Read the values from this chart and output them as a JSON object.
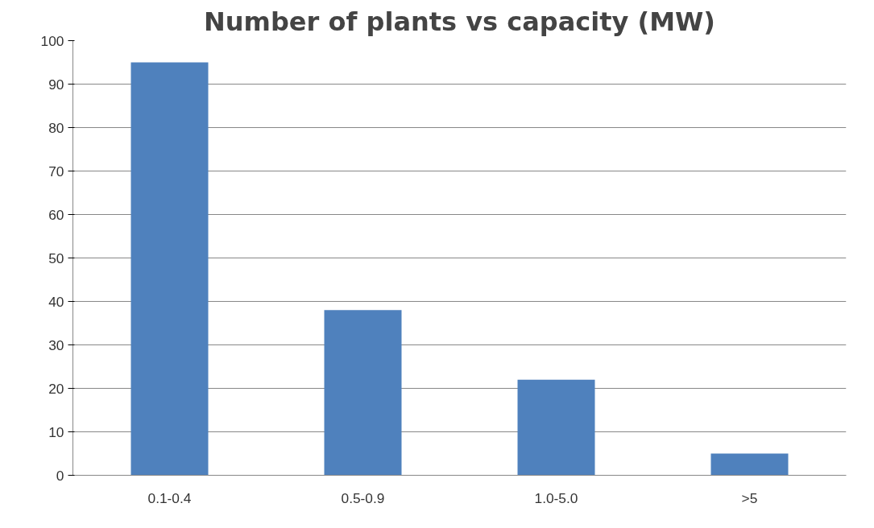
{
  "chart_data": {
    "type": "bar",
    "title": "Number of plants vs capacity (MW)",
    "categories": [
      "0.1-0.4",
      "0.5-0.9",
      "1.0-5.0",
      ">5"
    ],
    "values": [
      95,
      38,
      22,
      5
    ],
    "color": "#4f81bd",
    "ylim": [
      0,
      100
    ],
    "yticks": [
      0,
      10,
      20,
      30,
      40,
      50,
      60,
      70,
      80,
      90,
      100
    ],
    "grid": "y"
  }
}
